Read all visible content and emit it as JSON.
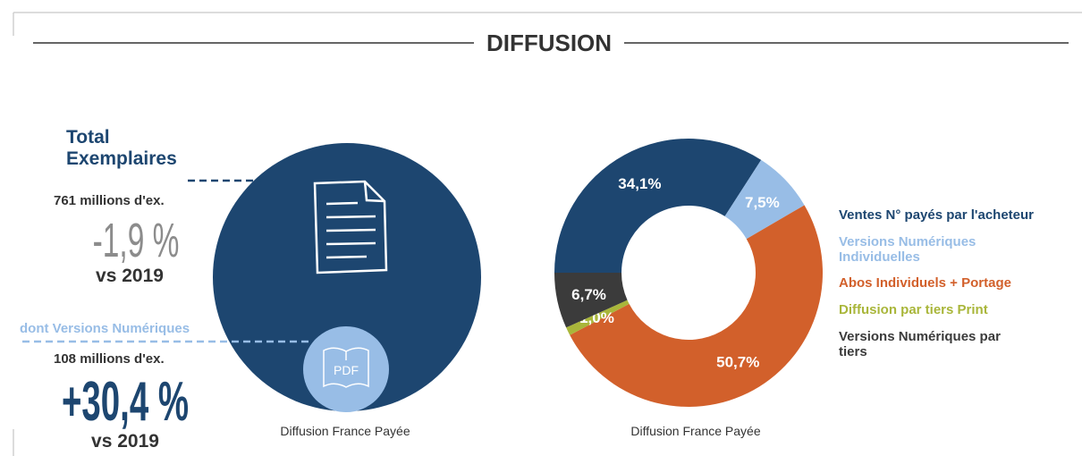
{
  "header": {
    "title": "DIFFUSION"
  },
  "left_panel": {
    "total_title": "Total Exemplaires",
    "total_amount": "761 millions d'ex.",
    "total_change": "-1,9 %",
    "total_compare": "vs 2019",
    "digital_title": "dont Versions Numériques",
    "digital_amount": "108 millions d'ex.",
    "digital_change": "+30,4 %",
    "digital_compare": "vs 2019",
    "icon_label": "PDF",
    "caption": "Diffusion France Payée"
  },
  "chart_data": {
    "type": "donut",
    "caption": "Diffusion France Payée",
    "series": [
      {
        "name": "Ventes N° payés par l'acheteur",
        "color": "#1d4670"
      },
      {
        "name": "Versions Numériques Individuelles",
        "color": "#98bde6"
      },
      {
        "name": "Abos Individuels + Portage",
        "color": "#d2602b"
      },
      {
        "name": "Diffusion par tiers Print",
        "color": "#a9b63a"
      },
      {
        "name": "Versions Numériques par tiers",
        "color": "#3b3b3b"
      }
    ],
    "values": [
      34.1,
      7.5,
      50.7,
      1.0,
      6.7
    ],
    "value_labels": [
      "34,1%",
      "7,5%",
      "50,7%",
      "1,0%",
      "6,7%"
    ]
  }
}
